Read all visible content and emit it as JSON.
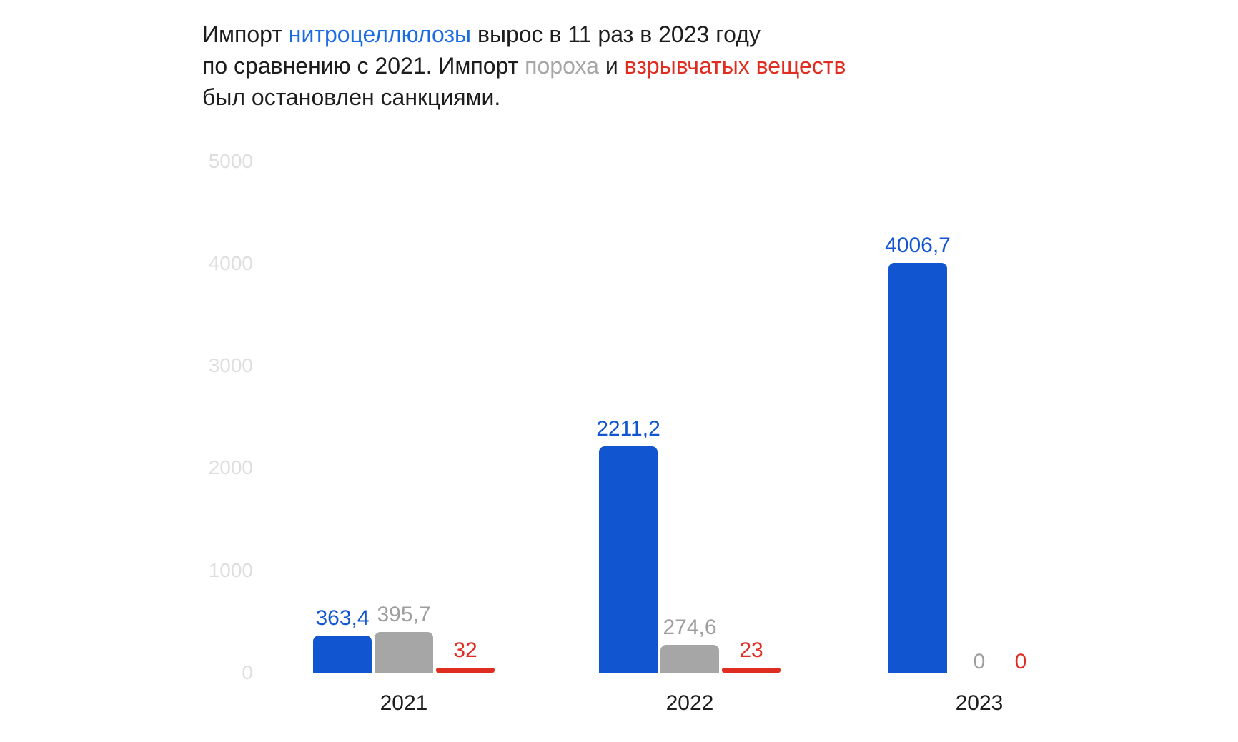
{
  "title": {
    "line1": [
      {
        "text": "Импорт "
      },
      {
        "text": "нитроцеллюлозы"
      },
      {
        "text": " вырос в 11 раз в 2023 году"
      }
    ],
    "line2": [
      {
        "text": "по сравнению с 2021. Импорт "
      },
      {
        "text": "пороха"
      },
      {
        "text": " и "
      },
      {
        "text": "взрывчатых веществ"
      }
    ],
    "line3": [
      {
        "text": "был остановлен санкциями."
      }
    ]
  },
  "colors": {
    "nitrocellulose_bar": "#1155d1",
    "nitrocellulose_title_word": "#1b6ce3",
    "powder_bar": "#a6a6a6",
    "powder_label_text": "#9e9e9e",
    "explosives_red": "#e02d22",
    "axis_tick_text": "#dedede",
    "body_text": "#1d1d1d",
    "background": "#ffffff"
  },
  "chart_data": {
    "type": "bar",
    "categories": [
      "2021",
      "2022",
      "2023"
    ],
    "series": [
      {
        "name": "нитроцеллюлозы",
        "color": "#1155d1",
        "label_color": "#1155d1",
        "values": [
          363.4,
          2211.2,
          4006.7
        ],
        "labels": [
          "363,4",
          "2211,2",
          "4006,7"
        ]
      },
      {
        "name": "пороха",
        "color": "#a6a6a6",
        "label_color": "#9e9e9e",
        "values": [
          395.7,
          274.6,
          0
        ],
        "labels": [
          "395,7",
          "274,6",
          "0"
        ]
      },
      {
        "name": "взрывчатых веществ",
        "color": "#e02d22",
        "label_color": "#e02d22",
        "values": [
          32,
          23,
          0
        ],
        "labels": [
          "32",
          "23",
          "0"
        ]
      }
    ],
    "yticks": [
      5000,
      4000,
      3000,
      2000,
      1000,
      0
    ],
    "ylim": [
      0,
      5000
    ],
    "grid": false,
    "legend": "none"
  }
}
